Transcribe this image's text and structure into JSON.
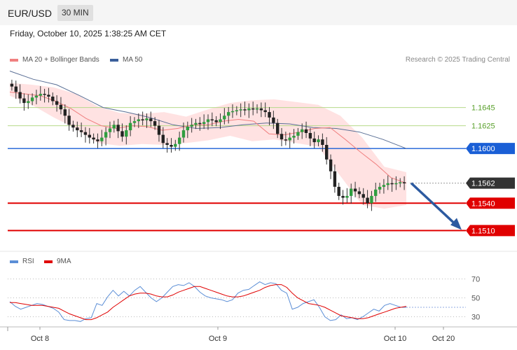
{
  "header": {
    "pair": "EUR/USD",
    "timeframe": "30 MIN"
  },
  "datetime": "Friday, October 10, 2025 1:38:25 AM CET",
  "legend_main": [
    {
      "label": "MA 20 + Bollinger Bands",
      "color": "#f08080"
    },
    {
      "label": "MA 50",
      "color": "#3a5f9b"
    }
  ],
  "legend_rsi": [
    {
      "label": "RSI",
      "color": "#5b8ed6"
    },
    {
      "label": "9MA",
      "color": "#e00000"
    }
  ],
  "credit": "Research © 2025 Trading Central",
  "chart_data": [
    {
      "type": "candlestick",
      "ylim": [
        1.1488,
        1.169
      ],
      "price_levels": [
        {
          "value": 1.1645,
          "label": "1.1645",
          "style": "light-green",
          "kind": "resistance"
        },
        {
          "value": 1.1625,
          "label": "1.1625",
          "style": "light-green",
          "kind": "resistance"
        },
        {
          "value": 1.16,
          "label": "1.1600",
          "style": "blue",
          "kind": "pivot"
        },
        {
          "value": 1.1562,
          "label": "1.1562",
          "style": "dark",
          "kind": "last-price"
        },
        {
          "value": 1.154,
          "label": "1.1540",
          "style": "red",
          "kind": "support"
        },
        {
          "value": 1.151,
          "label": "1.1510",
          "style": "red",
          "kind": "support"
        }
      ],
      "forecast_arrow": {
        "from": 1.1562,
        "to": 1.151
      },
      "x_ticks": [
        "Oct 8",
        "Oct 9",
        "Oct 10",
        "Oct 20"
      ],
      "close_path": [
        1.1668,
        1.1662,
        1.1655,
        1.165,
        1.1652,
        1.1656,
        1.1658,
        1.166,
        1.1659,
        1.1657,
        1.1652,
        1.1648,
        1.1643,
        1.1636,
        1.1626,
        1.1623,
        1.162,
        1.1618,
        1.1615,
        1.1612,
        1.161,
        1.1608,
        1.1612,
        1.1618,
        1.1622,
        1.1626,
        1.1619,
        1.1613,
        1.162,
        1.1628,
        1.163,
        1.1632,
        1.1631,
        1.1633,
        1.163,
        1.1625,
        1.1615,
        1.1606,
        1.1604,
        1.1602,
        1.1605,
        1.1612,
        1.162,
        1.1624,
        1.1626,
        1.1628,
        1.1627,
        1.1629,
        1.1632,
        1.1631,
        1.1629,
        1.1632,
        1.1636,
        1.164,
        1.1641,
        1.1642,
        1.1643,
        1.1642,
        1.1644,
        1.1643,
        1.1644,
        1.1642,
        1.164,
        1.1634,
        1.1628,
        1.1616,
        1.161,
        1.1609,
        1.1612,
        1.1614,
        1.1618,
        1.1621,
        1.1617,
        1.1611,
        1.1607,
        1.161,
        1.1604,
        1.1588,
        1.1575,
        1.1558,
        1.1548,
        1.1546,
        1.1548,
        1.1556,
        1.1553,
        1.155,
        1.1546,
        1.154,
        1.1548,
        1.1555,
        1.1558,
        1.156,
        1.1562,
        1.1561,
        1.1562,
        1.1563,
        1.1562
      ],
      "ma20_path": [
        1.1662,
        1.166,
        1.1658,
        1.1652,
        1.1644,
        1.1633,
        1.1625,
        1.1622,
        1.1625,
        1.1624,
        1.162,
        1.1622,
        1.1626,
        1.1626,
        1.163,
        1.1632,
        1.163,
        1.1616,
        1.1615,
        1.1618,
        1.1622,
        1.1623,
        1.161,
        1.1596,
        1.1583,
        1.1568,
        1.1562
      ],
      "ma50_path": [
        1.1685,
        1.1676,
        1.167,
        1.1658,
        1.1645,
        1.164,
        1.1634,
        1.1626,
        1.1622,
        1.1623,
        1.1626,
        1.1628,
        1.1627,
        1.1623,
        1.1622,
        1.1618,
        1.161,
        1.16
      ],
      "bb_upper_path": [
        1.1672,
        1.167,
        1.1667,
        1.166,
        1.1646,
        1.1639,
        1.1638,
        1.164,
        1.1635,
        1.1643,
        1.165,
        1.1653,
        1.1654,
        1.1651,
        1.1648,
        1.1636,
        1.1612,
        1.158,
        1.1574
      ],
      "bb_lower_path": [
        1.1658,
        1.1648,
        1.1634,
        1.1622,
        1.1606,
        1.1603,
        1.1605,
        1.1604,
        1.1606,
        1.1609,
        1.1614,
        1.1608,
        1.161,
        1.1606,
        1.1602,
        1.157,
        1.1538,
        1.1534,
        1.1538
      ]
    },
    {
      "type": "line",
      "title": "RSI",
      "ylim": [
        20,
        80
      ],
      "y_ticks": [
        30,
        50,
        70
      ],
      "series": [
        {
          "name": "RSI",
          "values": [
            46,
            41,
            38,
            40,
            42,
            44,
            43,
            41,
            39,
            35,
            27,
            26,
            26,
            25,
            28,
            29,
            44,
            42,
            51,
            58,
            52,
            57,
            52,
            58,
            62,
            56,
            50,
            46,
            50,
            56,
            62,
            64,
            63,
            66,
            62,
            56,
            52,
            50,
            49,
            48,
            46,
            48,
            55,
            58,
            59,
            63,
            67,
            64,
            66,
            65,
            58,
            55,
            38,
            40,
            44,
            46,
            48,
            40,
            30,
            26,
            27,
            32,
            28,
            29,
            27,
            30,
            34,
            38,
            36,
            42,
            44,
            42,
            40,
            40
          ]
        },
        {
          "name": "9MA",
          "values": [
            45,
            45,
            44,
            43,
            42,
            42,
            42,
            41,
            40,
            39,
            36,
            33,
            31,
            29,
            27,
            27,
            29,
            32,
            35,
            40,
            44,
            48,
            52,
            54,
            55,
            55,
            54,
            52,
            51,
            51,
            53,
            56,
            58,
            60,
            62,
            62,
            60,
            58,
            56,
            54,
            52,
            51,
            51,
            52,
            54,
            56,
            58,
            61,
            63,
            64,
            64,
            61,
            55,
            50,
            47,
            44,
            43,
            42,
            40,
            37,
            34,
            31,
            30,
            29,
            28,
            28,
            29,
            31,
            33,
            35,
            37,
            39,
            40,
            41
          ]
        }
      ]
    }
  ]
}
